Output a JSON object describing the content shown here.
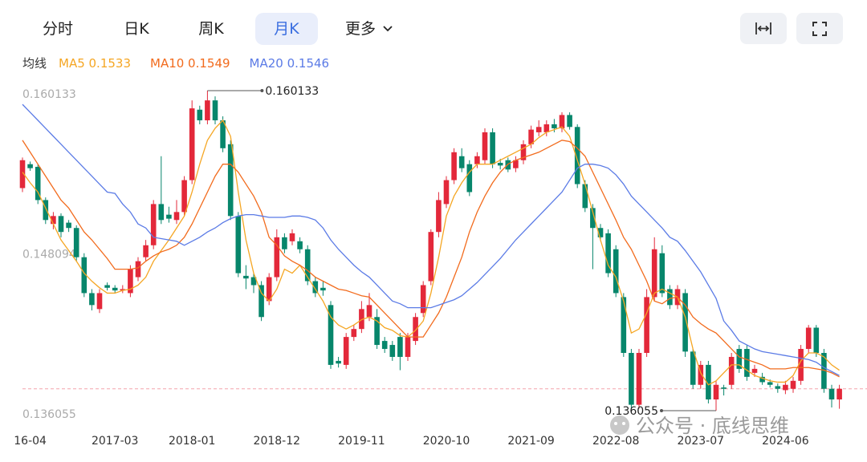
{
  "toolbar": {
    "tabs": [
      "分时",
      "日K",
      "周K",
      "月K",
      "更多"
    ],
    "active_index": 3
  },
  "watermark": "公众号 · 底线思维",
  "chart_data": {
    "type": "candlestick",
    "legend_title": "均线",
    "categories": [
      null,
      "16-04",
      null,
      null,
      null,
      null,
      null,
      null,
      null,
      null,
      null,
      null,
      "2017-03",
      null,
      null,
      null,
      null,
      null,
      null,
      null,
      null,
      null,
      "2018-01",
      null,
      null,
      null,
      null,
      null,
      null,
      null,
      null,
      null,
      null,
      "2018-12",
      null,
      null,
      null,
      null,
      null,
      null,
      null,
      null,
      null,
      null,
      "2019-11",
      null,
      null,
      null,
      null,
      null,
      null,
      null,
      null,
      null,
      null,
      "2020-10",
      null,
      null,
      null,
      null,
      null,
      null,
      null,
      null,
      null,
      null,
      "2021-09",
      null,
      null,
      null,
      null,
      null,
      null,
      null,
      null,
      null,
      null,
      "2022-08",
      null,
      null,
      null,
      null,
      null,
      null,
      null,
      null,
      null,
      null,
      "2023-07",
      null,
      null,
      null,
      null,
      null,
      null,
      null,
      null,
      null,
      null,
      "2024-06",
      null,
      null,
      null,
      null,
      null,
      null,
      null
    ],
    "open": [
      0.1528,
      0.1546,
      0.1544,
      0.1519,
      0.1501,
      0.1507,
      0.1502,
      0.1498,
      0.1476,
      0.1449,
      0.1437,
      0.1455,
      0.1453,
      0.1451,
      0.1449,
      0.1461,
      0.1476,
      0.1485,
      0.1516,
      0.1508,
      0.1504,
      0.151,
      0.1534,
      0.1587,
      0.1579,
      0.1594,
      0.1579,
      0.1561,
      0.1507,
      0.1462,
      0.1461,
      0.1455,
      0.1443,
      0.1461,
      0.1491,
      0.1488,
      0.1488,
      0.1482,
      0.1458,
      0.1453,
      0.144,
      0.1398,
      0.1395,
      0.1416,
      0.1422,
      0.1431,
      0.1431,
      0.1413,
      0.141,
      0.1416,
      0.1401,
      0.1413,
      0.1434,
      0.1458,
      0.1495,
      0.1516,
      0.1534,
      0.1552,
      0.1546,
      0.1546,
      0.1549,
      0.157,
      0.1547,
      0.1549,
      0.1543,
      0.1549,
      0.1561,
      0.157,
      0.157,
      0.1576,
      0.1573,
      0.1583,
      0.1574,
      0.1531,
      0.1513,
      0.1498,
      0.1494,
      0.1482,
      0.1446,
      0.1404,
      0.1365,
      0.1404,
      0.1446,
      0.1479,
      0.1452,
      0.144,
      0.1449,
      0.1405,
      0.138,
      0.1395,
      0.1369,
      0.1378,
      0.138,
      0.1407,
      0.1407,
      0.1389,
      0.1386,
      0.1382,
      0.1379,
      0.1376,
      0.1377,
      0.1383,
      0.1407,
      0.1423,
      0.1404,
      0.1377,
      0.1369
    ],
    "close": [
      0.1549,
      0.1543,
      0.1519,
      0.1504,
      0.1507,
      0.1495,
      0.1498,
      0.1476,
      0.1449,
      0.144,
      0.1449,
      0.1453,
      0.1451,
      0.1452,
      0.1467,
      0.1473,
      0.1485,
      0.1516,
      0.1504,
      0.1505,
      0.151,
      0.1534,
      0.1588,
      0.1579,
      0.1594,
      0.1579,
      0.1558,
      0.1507,
      0.1464,
      0.146,
      0.1455,
      0.1431,
      0.1461,
      0.1491,
      0.1482,
      0.1494,
      0.1482,
      0.1458,
      0.1449,
      0.1451,
      0.1395,
      0.1396,
      0.1416,
      0.1422,
      0.1437,
      0.144,
      0.141,
      0.1407,
      0.1401,
      0.1401,
      0.1416,
      0.1431,
      0.1455,
      0.1495,
      0.1519,
      0.1534,
      0.1555,
      0.1543,
      0.1525,
      0.1552,
      0.157,
      0.1546,
      0.1545,
      0.1542,
      0.1549,
      0.1561,
      0.1572,
      0.1574,
      0.1576,
      0.1573,
      0.1583,
      0.1574,
      0.1531,
      0.1513,
      0.1498,
      0.1491,
      0.1464,
      0.1449,
      0.1404,
      0.1365,
      0.1404,
      0.1446,
      0.1482,
      0.1449,
      0.144,
      0.1452,
      0.1405,
      0.138,
      0.1395,
      0.1369,
      0.138,
      0.1377,
      0.1401,
      0.1392,
      0.1386,
      0.1392,
      0.1382,
      0.138,
      0.1377,
      0.138,
      0.1383,
      0.1407,
      0.1423,
      0.1404,
      0.1377,
      0.1369,
      0.1377
    ],
    "high": [
      0.1551,
      0.1548,
      0.1546,
      0.1521,
      0.151,
      0.1509,
      0.1504,
      0.15,
      0.1479,
      0.1452,
      0.1452,
      0.1457,
      0.1455,
      0.1455,
      0.147,
      0.1476,
      0.1489,
      0.1519,
      0.1552,
      0.1514,
      0.1519,
      0.1537,
      0.1594,
      0.159,
      0.160133,
      0.1597,
      0.1582,
      0.1564,
      0.151,
      0.147,
      0.1464,
      0.1458,
      0.1464,
      0.1497,
      0.1494,
      0.1497,
      0.1491,
      0.1485,
      0.1461,
      0.1458,
      0.1443,
      0.1401,
      0.1419,
      0.1425,
      0.1443,
      0.1449,
      0.1437,
      0.1416,
      0.1413,
      0.1419,
      0.1419,
      0.1434,
      0.1458,
      0.1497,
      0.1525,
      0.1537,
      0.1558,
      0.1558,
      0.1549,
      0.1555,
      0.1573,
      0.1573,
      0.155,
      0.1551,
      0.1552,
      0.1564,
      0.1575,
      0.1579,
      0.1579,
      0.158,
      0.1585,
      0.1585,
      0.1576,
      0.1534,
      0.1516,
      0.1501,
      0.1497,
      0.1485,
      0.1449,
      0.1407,
      0.1407,
      0.1452,
      0.1491,
      0.1485,
      0.1455,
      0.1455,
      0.1452,
      0.1407,
      0.1398,
      0.1398,
      0.1383,
      0.138,
      0.1404,
      0.141,
      0.141,
      0.1395,
      0.1389,
      0.1384,
      0.1381,
      0.1383,
      0.1386,
      0.141,
      0.1425,
      0.1425,
      0.1407,
      0.138,
      0.138
    ],
    "low": [
      0.1525,
      0.1541,
      0.1516,
      0.1501,
      0.1497,
      0.1491,
      0.1495,
      0.1473,
      0.1446,
      0.1436,
      0.1434,
      0.1451,
      0.1449,
      0.1449,
      0.1446,
      0.1458,
      0.1473,
      0.1482,
      0.1501,
      0.1502,
      0.1501,
      0.1507,
      0.1531,
      0.1576,
      0.1576,
      0.1576,
      0.1555,
      0.1504,
      0.1461,
      0.1452,
      0.1449,
      0.1428,
      0.144,
      0.1458,
      0.1479,
      0.1485,
      0.1479,
      0.1455,
      0.1446,
      0.1447,
      0.1392,
      0.1393,
      0.1392,
      0.1413,
      0.1419,
      0.1428,
      0.1407,
      0.1404,
      0.1398,
      0.1391,
      0.1398,
      0.141,
      0.1431,
      0.1455,
      0.1491,
      0.1513,
      0.1531,
      0.154,
      0.1522,
      0.1543,
      0.1546,
      0.1543,
      0.1542,
      0.154,
      0.154,
      0.1546,
      0.1558,
      0.1567,
      0.1567,
      0.157,
      0.157,
      0.1572,
      0.1528,
      0.151,
      0.1467,
      0.1488,
      0.1461,
      0.1446,
      0.1401,
      0.1362,
      0.1362,
      0.1401,
      0.1443,
      0.1446,
      0.1437,
      0.1437,
      0.1401,
      0.1377,
      0.1377,
      0.1366,
      0.136055,
      0.1372,
      0.1377,
      0.1389,
      0.1383,
      0.1386,
      0.138,
      0.1378,
      0.1374,
      0.1373,
      0.1374,
      0.138,
      0.1404,
      0.1401,
      0.1374,
      0.1363,
      0.1362
    ],
    "up_color": "#e3283a",
    "down_color": "#07866b",
    "series": [
      {
        "name": "MA5 0.1533",
        "color": "#f5a623",
        "values": [
          0.154,
          0.1532,
          0.1525,
          0.1513,
          0.1501,
          0.1489,
          0.1481,
          0.1473,
          0.1464,
          0.1458,
          0.1453,
          0.1449,
          0.1449,
          0.1451,
          0.1452,
          0.1455,
          0.1461,
          0.1473,
          0.1481,
          0.1489,
          0.1498,
          0.1507,
          0.1525,
          0.1546,
          0.1564,
          0.1573,
          0.1579,
          0.1567,
          0.1525,
          0.1489,
          0.1464,
          0.1449,
          0.1443,
          0.1452,
          0.1467,
          0.1464,
          0.147,
          0.1461,
          0.1452,
          0.1443,
          0.1431,
          0.1425,
          0.1422,
          0.1425,
          0.1429,
          0.1431,
          0.1428,
          0.1423,
          0.1421,
          0.1417,
          0.1416,
          0.1421,
          0.1428,
          0.1449,
          0.1476,
          0.1507,
          0.1522,
          0.1532,
          0.154,
          0.1546,
          0.1546,
          0.1546,
          0.1549,
          0.1552,
          0.1555,
          0.1558,
          0.1561,
          0.1566,
          0.157,
          0.1572,
          0.1574,
          0.1567,
          0.1549,
          0.1531,
          0.151,
          0.1489,
          0.147,
          0.1461,
          0.1443,
          0.1419,
          0.1422,
          0.1434,
          0.1449,
          0.1452,
          0.1449,
          0.1446,
          0.1431,
          0.1407,
          0.1389,
          0.138,
          0.1383,
          0.1389,
          0.1395,
          0.1395,
          0.1391,
          0.1387,
          0.1385,
          0.1383,
          0.1382,
          0.1382,
          0.1387,
          0.1398,
          0.1404,
          0.1404,
          0.1401,
          0.1395,
          0.1391
        ]
      },
      {
        "name": "MA10 0.1549",
        "color": "#f26b1d",
        "values": [
          0.1564,
          0.1555,
          0.1546,
          0.1537,
          0.1528,
          0.1519,
          0.1513,
          0.1504,
          0.1495,
          0.1489,
          0.1482,
          0.1475,
          0.1467,
          0.1467,
          0.1467,
          0.1468,
          0.1473,
          0.1477,
          0.148,
          0.1482,
          0.1485,
          0.1491,
          0.1501,
          0.1513,
          0.1525,
          0.1537,
          0.1546,
          0.1546,
          0.154,
          0.1531,
          0.1522,
          0.151,
          0.1491,
          0.1485,
          0.1477,
          0.1473,
          0.147,
          0.1466,
          0.1461,
          0.1458,
          0.1455,
          0.1452,
          0.1451,
          0.1449,
          0.1447,
          0.1446,
          0.144,
          0.1434,
          0.1428,
          0.1422,
          0.1416,
          0.1416,
          0.1416,
          0.1425,
          0.1434,
          0.1446,
          0.1461,
          0.1476,
          0.1495,
          0.151,
          0.1522,
          0.1532,
          0.154,
          0.1546,
          0.1549,
          0.1551,
          0.1553,
          0.1555,
          0.1558,
          0.1561,
          0.1564,
          0.1563,
          0.1558,
          0.1552,
          0.154,
          0.1528,
          0.1516,
          0.1504,
          0.1491,
          0.1482,
          0.147,
          0.1458,
          0.1443,
          0.1441,
          0.1445,
          0.1446,
          0.144,
          0.1431,
          0.1426,
          0.1422,
          0.1419,
          0.1413,
          0.1407,
          0.1401,
          0.1399,
          0.1397,
          0.1395,
          0.1392,
          0.1392,
          0.1392,
          0.1393,
          0.1393,
          0.1393,
          0.1392,
          0.1391,
          0.1389,
          0.1386
        ]
      },
      {
        "name": "MA20 0.1546",
        "color": "#5b7be6",
        "values": [
          0.1591,
          0.1585,
          0.1579,
          0.1573,
          0.1567,
          0.1561,
          0.1555,
          0.1549,
          0.1543,
          0.1537,
          0.1531,
          0.1525,
          0.1524,
          0.1516,
          0.151,
          0.1501,
          0.1498,
          0.1491,
          0.149,
          0.1489,
          0.1488,
          0.1485,
          0.1488,
          0.1491,
          0.1495,
          0.1498,
          0.1502,
          0.1505,
          0.1507,
          0.1508,
          0.1508,
          0.1507,
          0.1506,
          0.1506,
          0.1506,
          0.1507,
          0.1507,
          0.1506,
          0.1504,
          0.1498,
          0.1489,
          0.1482,
          0.1476,
          0.147,
          0.1465,
          0.1461,
          0.1455,
          0.1449,
          0.1443,
          0.1441,
          0.1438,
          0.1438,
          0.1438,
          0.1438,
          0.144,
          0.1442,
          0.1444,
          0.1447,
          0.1452,
          0.1457,
          0.1463,
          0.1469,
          0.1475,
          0.1482,
          0.1489,
          0.1495,
          0.1501,
          0.1507,
          0.1513,
          0.1519,
          0.1525,
          0.1534,
          0.1543,
          0.1546,
          0.1546,
          0.1545,
          0.1543,
          0.1538,
          0.1531,
          0.1522,
          0.1516,
          0.151,
          0.1504,
          0.1498,
          0.1491,
          0.1488,
          0.1481,
          0.1473,
          0.1465,
          0.1455,
          0.1445,
          0.1428,
          0.1421,
          0.1413,
          0.141,
          0.1407,
          0.1405,
          0.1404,
          0.1403,
          0.1402,
          0.1401,
          0.14,
          0.1399,
          0.1397,
          0.1393,
          0.139,
          0.1387
        ]
      }
    ],
    "ylim": [
      0.136055,
      0.160133
    ],
    "yticks": [
      0.160133,
      0.148094,
      0.136055
    ],
    "grid": false,
    "last_price_line": true,
    "extreme_labels": true
  }
}
